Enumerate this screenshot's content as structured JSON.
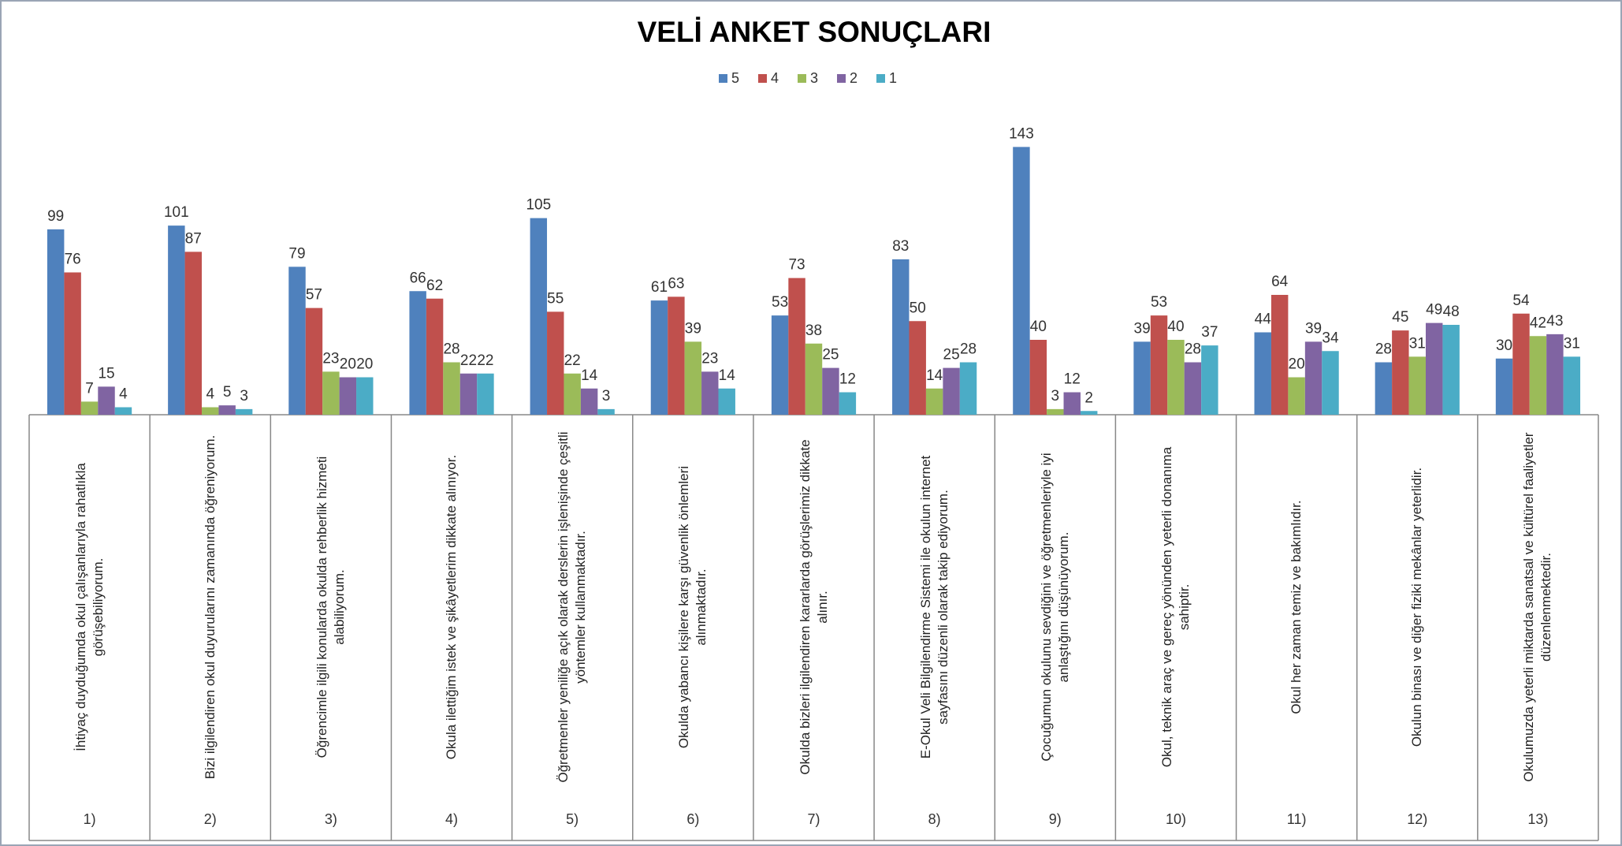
{
  "chart_data": {
    "type": "bar",
    "title": "VELİ ANKET SONUÇLARI",
    "categories": [
      "İhtiyaç duyduğumda okul çalışanlarıyla rahatlıkla görüşebiliyorum.",
      "Bizi ilgilendiren okul duyurularını zamanında öğreniyorum.",
      "Öğrencimle ilgili konularda okulda rehberlik hizmeti alabiliyorum.",
      "Okula ilettiğim istek ve şikâyetlerim dikkate alınıyor.",
      "Öğretmenler yeniliğe açık olarak derslerin işlenişinde çeşitli yöntemler kullanmaktadır.",
      "Okulda yabancı kişilere karşı güvenlik önlemleri alınmaktadır.",
      "Okulda bizleri ilgilendiren kararlarda görüşlerimiz dikkate alınır.",
      "E-Okul Veli Bilgilendirme Sistemi ile okulun internet sayfasını düzenli olarak takip ediyorum.",
      "Çocuğumun okulunu sevdiğini ve öğretmenleriyle iyi anlaştığını düşünüyorum.",
      "Okul, teknik araç ve gereç yönünden yeterli donanıma sahiptir.",
      "Okul her zaman temiz ve bakımlıdır.",
      "Okulun binası ve diğer fiziki mekânlar yeterlidir.",
      "Okulumuzda yeterli miktarda sanatsal ve kültürel faaliyetler düzenlenmektedir."
    ],
    "category_numbers": [
      "1)",
      "2)",
      "3)",
      "4)",
      "5)",
      "6)",
      "7)",
      "8)",
      "9)",
      "10)",
      "11)",
      "12)",
      "13)"
    ],
    "series": [
      {
        "name": "5",
        "color": "#4f81bd",
        "values": [
          99,
          101,
          79,
          66,
          105,
          61,
          53,
          83,
          143,
          39,
          44,
          28,
          30
        ]
      },
      {
        "name": "4",
        "color": "#c0504d",
        "values": [
          76,
          87,
          57,
          62,
          55,
          63,
          73,
          50,
          40,
          53,
          64,
          45,
          54
        ]
      },
      {
        "name": "3",
        "color": "#9bbb59",
        "values": [
          7,
          4,
          23,
          28,
          22,
          39,
          38,
          14,
          3,
          40,
          20,
          31,
          42
        ]
      },
      {
        "name": "2",
        "color": "#8064a2",
        "values": [
          15,
          5,
          20,
          22,
          14,
          23,
          25,
          25,
          12,
          28,
          39,
          49,
          43
        ]
      },
      {
        "name": "1",
        "color": "#4bacc6",
        "values": [
          4,
          3,
          20,
          22,
          3,
          14,
          12,
          28,
          2,
          37,
          34,
          48,
          31
        ]
      }
    ],
    "ylim": [
      0,
      160
    ],
    "legend": "top"
  }
}
